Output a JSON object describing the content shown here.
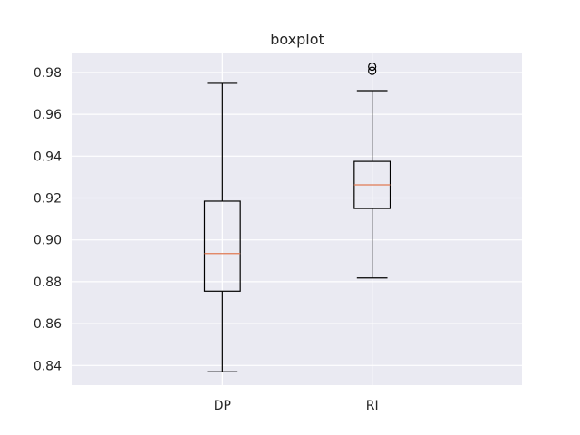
{
  "chart_data": {
    "type": "boxplot",
    "title": "boxplot",
    "xlabel": "",
    "ylabel": "",
    "categories": [
      "DP",
      "RI"
    ],
    "boxes": [
      {
        "label": "DP",
        "whisker_low": 0.837,
        "q1": 0.8755,
        "median": 0.8935,
        "q3": 0.9185,
        "whisker_high": 0.9748,
        "outliers": []
      },
      {
        "label": "RI",
        "whisker_low": 0.8818,
        "q1": 0.915,
        "median": 0.9263,
        "q3": 0.9375,
        "whisker_high": 0.9713,
        "outliers": [
          0.9808,
          0.9828
        ]
      }
    ],
    "ylim": [
      0.8306,
      0.9895
    ],
    "yticks": [
      0.84,
      0.86,
      0.88,
      0.9,
      0.92,
      0.94,
      0.96,
      0.98
    ],
    "ytick_labels": [
      "0.84",
      "0.86",
      "0.88",
      "0.90",
      "0.92",
      "0.94",
      "0.96",
      "0.98"
    ],
    "grid": true,
    "colors": {
      "background": "#eaeaf2",
      "grid": "#ffffff",
      "box": "#000000",
      "median": "#e07b54",
      "text": "#262626"
    }
  }
}
